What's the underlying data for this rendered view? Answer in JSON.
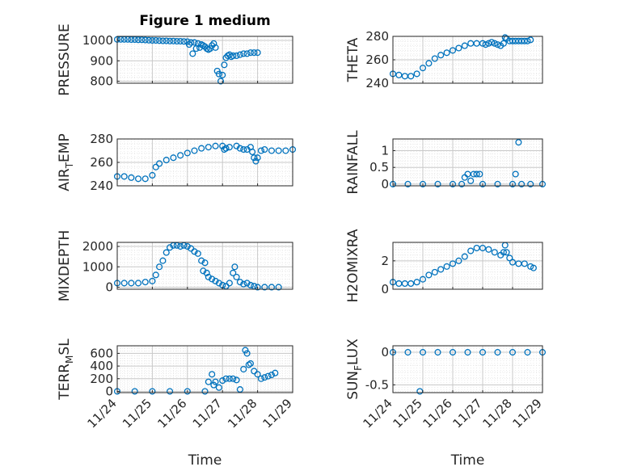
{
  "colors": {
    "marker": "#0072BD",
    "axis": "#262626",
    "grid": "#c8c8c8",
    "minorGrid": "#e4e4e4"
  },
  "chart_data": [
    {
      "type": "scatter",
      "title": "Figure 1 medium",
      "ylabel": "PRESSURE",
      "ylim": [
        790,
        1020
      ],
      "yticks": [
        800,
        900,
        1000
      ],
      "xlim": [
        0,
        5
      ],
      "xticklabels": [],
      "marker": "open-circle",
      "grid": true,
      "minor_grid": true,
      "points": [
        [
          0.0,
          1005
        ],
        [
          0.1,
          1005
        ],
        [
          0.2,
          1005
        ],
        [
          0.3,
          1005
        ],
        [
          0.4,
          1004
        ],
        [
          0.5,
          1004
        ],
        [
          0.6,
          1003
        ],
        [
          0.7,
          1003
        ],
        [
          0.8,
          1002
        ],
        [
          0.9,
          1001
        ],
        [
          1.0,
          1000
        ],
        [
          1.1,
          1000
        ],
        [
          1.2,
          999
        ],
        [
          1.3,
          998
        ],
        [
          1.4,
          998
        ],
        [
          1.5,
          997
        ],
        [
          1.6,
          997
        ],
        [
          1.7,
          996
        ],
        [
          1.8,
          996
        ],
        [
          1.9,
          995
        ],
        [
          2.0,
          994
        ],
        [
          2.05,
          980
        ],
        [
          2.1,
          990
        ],
        [
          2.15,
          935
        ],
        [
          2.2,
          990
        ],
        [
          2.25,
          960
        ],
        [
          2.3,
          985
        ],
        [
          2.35,
          965
        ],
        [
          2.4,
          980
        ],
        [
          2.45,
          975
        ],
        [
          2.5,
          970
        ],
        [
          2.55,
          960
        ],
        [
          2.6,
          955
        ],
        [
          2.65,
          960
        ],
        [
          2.7,
          975
        ],
        [
          2.75,
          985
        ],
        [
          2.8,
          965
        ],
        [
          2.85,
          850
        ],
        [
          2.9,
          835
        ],
        [
          2.95,
          800
        ],
        [
          3.0,
          830
        ],
        [
          3.05,
          880
        ],
        [
          3.1,
          915
        ],
        [
          3.15,
          925
        ],
        [
          3.2,
          930
        ],
        [
          3.25,
          920
        ],
        [
          3.3,
          925
        ],
        [
          3.4,
          925
        ],
        [
          3.5,
          930
        ],
        [
          3.6,
          935
        ],
        [
          3.7,
          935
        ],
        [
          3.8,
          940
        ],
        [
          3.9,
          940
        ],
        [
          4.0,
          940
        ]
      ]
    },
    {
      "type": "scatter",
      "title": "",
      "ylabel": "THETA",
      "ylim": [
        240,
        280
      ],
      "yticks": [
        240,
        260,
        280
      ],
      "xlim": [
        0,
        5
      ],
      "xticklabels": [],
      "marker": "open-circle",
      "grid": true,
      "minor_grid": true,
      "points": [
        [
          0.0,
          248
        ],
        [
          0.2,
          247
        ],
        [
          0.4,
          246
        ],
        [
          0.6,
          246
        ],
        [
          0.8,
          248
        ],
        [
          1.0,
          253
        ],
        [
          1.2,
          257
        ],
        [
          1.4,
          261
        ],
        [
          1.6,
          264
        ],
        [
          1.8,
          266
        ],
        [
          2.0,
          268
        ],
        [
          2.2,
          270
        ],
        [
          2.4,
          272
        ],
        [
          2.6,
          274
        ],
        [
          2.8,
          274
        ],
        [
          3.0,
          274
        ],
        [
          3.1,
          273
        ],
        [
          3.2,
          274
        ],
        [
          3.3,
          275
        ],
        [
          3.4,
          274
        ],
        [
          3.5,
          273
        ],
        [
          3.6,
          272
        ],
        [
          3.7,
          274
        ],
        [
          3.75,
          279
        ],
        [
          3.8,
          278
        ],
        [
          3.9,
          276
        ],
        [
          4.0,
          276
        ],
        [
          4.1,
          276
        ],
        [
          4.2,
          276
        ],
        [
          4.3,
          276
        ],
        [
          4.4,
          276
        ],
        [
          4.5,
          276
        ],
        [
          4.6,
          277
        ]
      ]
    },
    {
      "type": "scatter",
      "title": "",
      "ylabel": "AIR_TEMP",
      "ylim": [
        240,
        280
      ],
      "yticks": [
        240,
        260,
        280
      ],
      "xlim": [
        0,
        5
      ],
      "xticklabels": [],
      "marker": "open-circle",
      "grid": true,
      "minor_grid": true,
      "points": [
        [
          0.0,
          248
        ],
        [
          0.2,
          248
        ],
        [
          0.4,
          247
        ],
        [
          0.6,
          246
        ],
        [
          0.8,
          246
        ],
        [
          1.0,
          249
        ],
        [
          1.1,
          256
        ],
        [
          1.2,
          259
        ],
        [
          1.4,
          262
        ],
        [
          1.6,
          264
        ],
        [
          1.8,
          266
        ],
        [
          2.0,
          268
        ],
        [
          2.2,
          270
        ],
        [
          2.4,
          272
        ],
        [
          2.6,
          273
        ],
        [
          2.8,
          274
        ],
        [
          3.0,
          274
        ],
        [
          3.05,
          271
        ],
        [
          3.1,
          272
        ],
        [
          3.2,
          273
        ],
        [
          3.4,
          274
        ],
        [
          3.5,
          272
        ],
        [
          3.6,
          271
        ],
        [
          3.7,
          271
        ],
        [
          3.8,
          273
        ],
        [
          3.85,
          269
        ],
        [
          3.9,
          264
        ],
        [
          3.95,
          261
        ],
        [
          4.0,
          264
        ],
        [
          4.1,
          270
        ],
        [
          4.2,
          271
        ],
        [
          4.4,
          270
        ],
        [
          4.6,
          270
        ],
        [
          4.8,
          270
        ],
        [
          5.0,
          271
        ]
      ]
    },
    {
      "type": "scatter",
      "title": "",
      "ylabel": "RAINFALL",
      "ylim": [
        -0.05,
        1.35
      ],
      "yticks": [
        0,
        0.5,
        1
      ],
      "xlim": [
        0,
        5
      ],
      "xticklabels": [],
      "marker": "open-circle",
      "grid": true,
      "minor_grid": true,
      "points": [
        [
          0.0,
          0
        ],
        [
          0.5,
          0
        ],
        [
          1.0,
          0
        ],
        [
          1.5,
          0
        ],
        [
          2.0,
          0
        ],
        [
          2.3,
          0
        ],
        [
          2.4,
          0.2
        ],
        [
          2.5,
          0.3
        ],
        [
          2.6,
          0.1
        ],
        [
          2.7,
          0.3
        ],
        [
          2.8,
          0.3
        ],
        [
          2.9,
          0.3
        ],
        [
          3.0,
          0
        ],
        [
          3.5,
          0
        ],
        [
          4.0,
          0
        ],
        [
          4.1,
          0.3
        ],
        [
          4.2,
          1.25
        ],
        [
          4.3,
          0
        ],
        [
          4.6,
          0
        ],
        [
          5.0,
          0
        ]
      ]
    },
    {
      "type": "scatter",
      "title": "",
      "ylabel": "MIXDEPTH",
      "ylim": [
        -100,
        2200
      ],
      "yticks": [
        0,
        1000,
        2000
      ],
      "xlim": [
        0,
        5
      ],
      "xticklabels": [],
      "marker": "open-circle",
      "grid": true,
      "minor_grid": true,
      "points": [
        [
          0.0,
          200
        ],
        [
          0.2,
          200
        ],
        [
          0.4,
          200
        ],
        [
          0.6,
          200
        ],
        [
          0.8,
          250
        ],
        [
          1.0,
          300
        ],
        [
          1.1,
          600
        ],
        [
          1.2,
          1000
        ],
        [
          1.3,
          1300
        ],
        [
          1.4,
          1700
        ],
        [
          1.5,
          1950
        ],
        [
          1.6,
          2050
        ],
        [
          1.7,
          2050
        ],
        [
          1.8,
          2000
        ],
        [
          1.9,
          2050
        ],
        [
          2.0,
          2000
        ],
        [
          2.1,
          1900
        ],
        [
          2.2,
          1750
        ],
        [
          2.3,
          1650
        ],
        [
          2.4,
          1300
        ],
        [
          2.45,
          800
        ],
        [
          2.5,
          1200
        ],
        [
          2.55,
          700
        ],
        [
          2.6,
          500
        ],
        [
          2.7,
          400
        ],
        [
          2.8,
          300
        ],
        [
          2.9,
          200
        ],
        [
          3.0,
          100
        ],
        [
          3.1,
          50
        ],
        [
          3.2,
          200
        ],
        [
          3.3,
          700
        ],
        [
          3.35,
          1000
        ],
        [
          3.4,
          500
        ],
        [
          3.5,
          250
        ],
        [
          3.6,
          150
        ],
        [
          3.7,
          200
        ],
        [
          3.8,
          100
        ],
        [
          3.9,
          50
        ],
        [
          4.0,
          0
        ],
        [
          4.2,
          0
        ],
        [
          4.4,
          0
        ],
        [
          4.6,
          0
        ]
      ]
    },
    {
      "type": "scatter",
      "title": "",
      "ylabel": "H2OMIXRA",
      "ylim": [
        0,
        3.3
      ],
      "yticks": [
        0,
        2
      ],
      "xlim": [
        0,
        5
      ],
      "xticklabels": [],
      "marker": "open-circle",
      "grid": true,
      "minor_grid": true,
      "points": [
        [
          0.0,
          0.5
        ],
        [
          0.2,
          0.4
        ],
        [
          0.4,
          0.4
        ],
        [
          0.6,
          0.4
        ],
        [
          0.8,
          0.5
        ],
        [
          1.0,
          0.7
        ],
        [
          1.2,
          1.0
        ],
        [
          1.4,
          1.2
        ],
        [
          1.6,
          1.4
        ],
        [
          1.8,
          1.6
        ],
        [
          2.0,
          1.8
        ],
        [
          2.2,
          2.0
        ],
        [
          2.4,
          2.3
        ],
        [
          2.6,
          2.7
        ],
        [
          2.8,
          2.9
        ],
        [
          3.0,
          2.9
        ],
        [
          3.2,
          2.8
        ],
        [
          3.4,
          2.6
        ],
        [
          3.6,
          2.4
        ],
        [
          3.7,
          2.6
        ],
        [
          3.75,
          3.1
        ],
        [
          3.8,
          2.6
        ],
        [
          3.9,
          2.2
        ],
        [
          4.0,
          1.9
        ],
        [
          4.2,
          1.8
        ],
        [
          4.4,
          1.8
        ],
        [
          4.6,
          1.6
        ],
        [
          4.7,
          1.5
        ]
      ]
    },
    {
      "type": "scatter",
      "title": "",
      "ylabel": "TERR_MSL",
      "ylim": [
        -20,
        720
      ],
      "yticks": [
        0,
        200,
        400,
        600
      ],
      "xlim": [
        0,
        5
      ],
      "xticklabels": [
        "11/24",
        "11/25",
        "11/26",
        "11/27",
        "11/28",
        "11/29"
      ],
      "xlabel": "Time",
      "marker": "open-circle",
      "grid": true,
      "minor_grid": true,
      "points": [
        [
          0.0,
          0
        ],
        [
          0.5,
          0
        ],
        [
          1.0,
          0
        ],
        [
          1.5,
          0
        ],
        [
          2.0,
          0
        ],
        [
          2.5,
          0
        ],
        [
          2.6,
          150
        ],
        [
          2.7,
          270
        ],
        [
          2.75,
          100
        ],
        [
          2.8,
          150
        ],
        [
          2.9,
          60
        ],
        [
          3.0,
          170
        ],
        [
          3.1,
          200
        ],
        [
          3.2,
          200
        ],
        [
          3.3,
          200
        ],
        [
          3.4,
          180
        ],
        [
          3.5,
          30
        ],
        [
          3.6,
          350
        ],
        [
          3.65,
          650
        ],
        [
          3.7,
          600
        ],
        [
          3.75,
          420
        ],
        [
          3.8,
          440
        ],
        [
          3.9,
          320
        ],
        [
          4.0,
          270
        ],
        [
          4.1,
          200
        ],
        [
          4.2,
          220
        ],
        [
          4.3,
          240
        ],
        [
          4.4,
          260
        ],
        [
          4.5,
          290
        ]
      ]
    },
    {
      "type": "scatter",
      "title": "",
      "ylabel": "SUN_FLUX",
      "ylim": [
        -0.62,
        0.1
      ],
      "yticks": [
        -0.5,
        0
      ],
      "xlim": [
        0,
        5
      ],
      "xticklabels": [
        "11/24",
        "11/25",
        "11/26",
        "11/27",
        "11/28",
        "11/29"
      ],
      "xlabel": "Time",
      "marker": "open-circle",
      "grid": true,
      "minor_grid": true,
      "points": [
        [
          0.0,
          0
        ],
        [
          0.5,
          0
        ],
        [
          0.9,
          -0.6
        ],
        [
          1.0,
          0
        ],
        [
          1.5,
          0
        ],
        [
          2.0,
          0
        ],
        [
          2.5,
          0
        ],
        [
          3.0,
          0
        ],
        [
          3.5,
          0
        ],
        [
          4.0,
          0
        ],
        [
          4.5,
          0
        ],
        [
          5.0,
          0
        ]
      ]
    }
  ]
}
